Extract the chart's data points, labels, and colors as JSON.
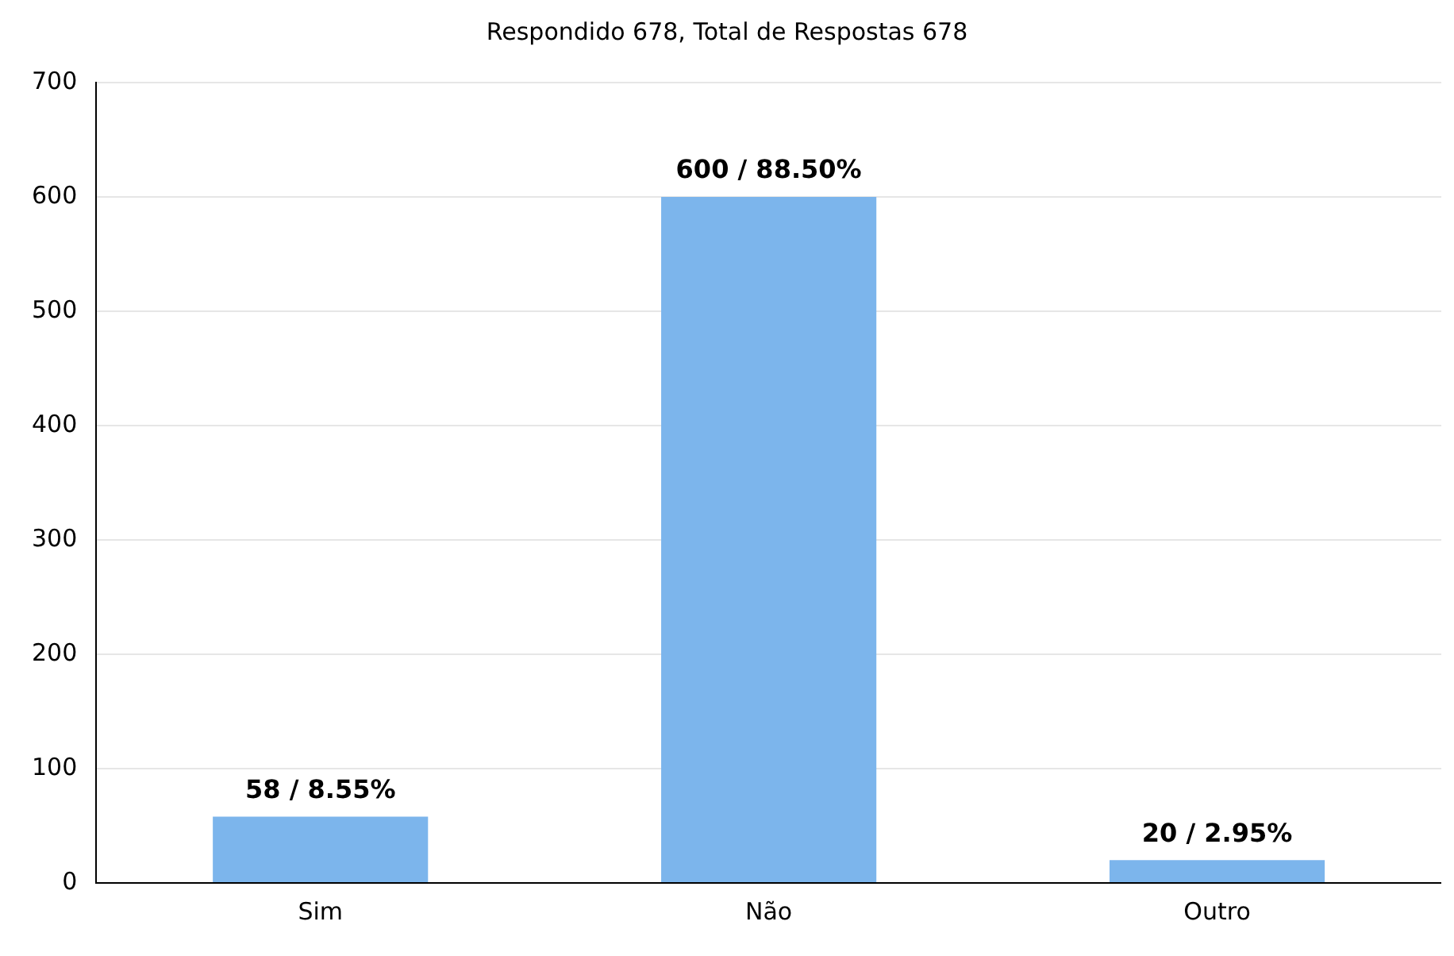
{
  "chart_data": {
    "type": "bar",
    "title": "Respondido 678, Total de Respostas 678",
    "categories": [
      "Sim",
      "Não",
      "Outro"
    ],
    "values": [
      58,
      600,
      20
    ],
    "value_labels": [
      "58 / 8.55%",
      "600 / 88.50%",
      "20 / 2.95%"
    ],
    "color": "#7cb5ec",
    "ylim": [
      0,
      700
    ],
    "yticks": [
      0,
      100,
      200,
      300,
      400,
      500,
      600,
      700
    ],
    "grid": "y",
    "legend": false
  }
}
